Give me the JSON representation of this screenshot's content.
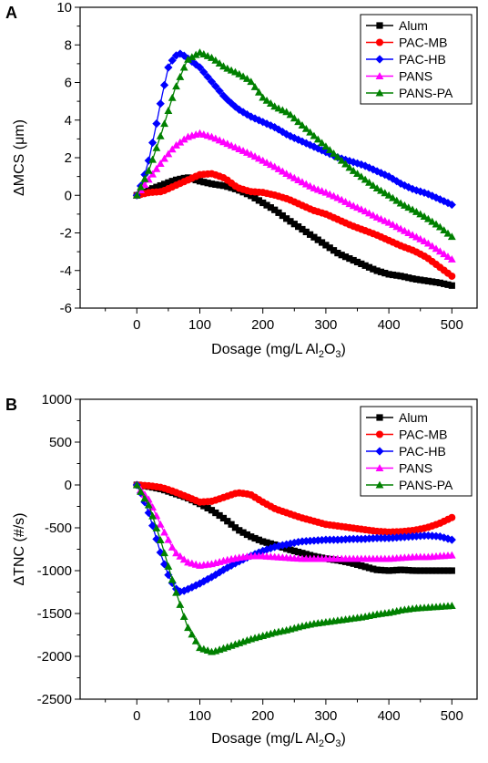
{
  "chart_data": [
    {
      "type": "line",
      "panel_label": "A",
      "xlabel": "Dosage (mg/L Al",
      "xlabel_sub": "2",
      "xlabel_mid": "O",
      "xlabel_sub2": "3",
      "xlabel_end": ")",
      "ylabel": "ΔMCS (μm)",
      "xlim": [
        -90,
        540
      ],
      "ylim": [
        -6,
        10
      ],
      "xticks": [
        0,
        100,
        200,
        300,
        400,
        500
      ],
      "yticks": [
        -6,
        -4,
        -2,
        0,
        2,
        4,
        6,
        8,
        10
      ],
      "legend_position": "top-right",
      "series": [
        {
          "name": "Alum",
          "color": "#000000",
          "marker": "square",
          "x": [
            0,
            20,
            40,
            60,
            80,
            100,
            120,
            140,
            160,
            180,
            200,
            220,
            240,
            260,
            280,
            300,
            320,
            340,
            360,
            380,
            400,
            420,
            440,
            460,
            480,
            500
          ],
          "y": [
            0,
            0.3,
            0.55,
            0.8,
            0.95,
            0.75,
            0.6,
            0.5,
            0.3,
            0,
            -0.4,
            -0.8,
            -1.3,
            -1.75,
            -2.2,
            -2.65,
            -3.1,
            -3.4,
            -3.7,
            -4.0,
            -4.2,
            -4.3,
            -4.45,
            -4.55,
            -4.65,
            -4.8
          ]
        },
        {
          "name": "PAC-MB",
          "color": "#ff0000",
          "marker": "circle",
          "x": [
            0,
            20,
            40,
            60,
            80,
            100,
            120,
            140,
            160,
            180,
            200,
            220,
            240,
            260,
            280,
            300,
            320,
            340,
            360,
            380,
            400,
            420,
            440,
            460,
            480,
            500
          ],
          "y": [
            0,
            0.15,
            0.2,
            0.5,
            0.8,
            1.1,
            1.15,
            0.9,
            0.4,
            0.2,
            0.15,
            0,
            -0.2,
            -0.5,
            -0.8,
            -1.0,
            -1.3,
            -1.6,
            -1.85,
            -2.1,
            -2.4,
            -2.7,
            -2.95,
            -3.3,
            -3.8,
            -4.3
          ]
        },
        {
          "name": "PAC-HB",
          "color": "#0000ff",
          "marker": "diamond",
          "x": [
            0,
            10,
            20,
            30,
            40,
            50,
            60,
            70,
            80,
            100,
            120,
            140,
            160,
            180,
            200,
            220,
            240,
            260,
            280,
            300,
            320,
            340,
            360,
            380,
            400,
            420,
            440,
            460,
            480,
            500
          ],
          "y": [
            0,
            0.8,
            2.0,
            3.6,
            5.3,
            6.8,
            7.4,
            7.55,
            7.3,
            6.8,
            6.0,
            5.2,
            4.6,
            4.2,
            3.9,
            3.6,
            3.2,
            2.9,
            2.6,
            2.3,
            2.0,
            1.8,
            1.6,
            1.3,
            1.0,
            0.6,
            0.3,
            0.1,
            -0.2,
            -0.5
          ]
        },
        {
          "name": "PANS",
          "color": "#ff00ff",
          "marker": "triangle",
          "x": [
            0,
            20,
            40,
            60,
            80,
            100,
            120,
            140,
            160,
            180,
            200,
            220,
            240,
            260,
            280,
            300,
            320,
            340,
            360,
            380,
            400,
            420,
            440,
            460,
            480,
            500
          ],
          "y": [
            0,
            0.9,
            1.8,
            2.6,
            3.1,
            3.3,
            3.1,
            2.8,
            2.5,
            2.2,
            1.85,
            1.5,
            1.1,
            0.75,
            0.4,
            0.15,
            -0.15,
            -0.5,
            -0.8,
            -1.15,
            -1.45,
            -1.8,
            -2.15,
            -2.5,
            -2.95,
            -3.4
          ]
        },
        {
          "name": "PANS-PA",
          "color": "#008000",
          "marker": "triangle",
          "x": [
            0,
            20,
            40,
            60,
            80,
            100,
            120,
            140,
            160,
            180,
            200,
            220,
            240,
            260,
            280,
            300,
            320,
            340,
            360,
            380,
            400,
            420,
            440,
            460,
            480,
            500
          ],
          "y": [
            0,
            1.4,
            3.4,
            5.6,
            7.2,
            7.6,
            7.3,
            6.8,
            6.5,
            6.1,
            5.2,
            4.7,
            4.4,
            3.8,
            3.2,
            2.6,
            2.0,
            1.4,
            0.9,
            0.4,
            0,
            -0.45,
            -0.8,
            -1.2,
            -1.65,
            -2.2
          ]
        }
      ]
    },
    {
      "type": "line",
      "panel_label": "B",
      "xlabel": "Dosage (mg/L Al",
      "xlabel_sub": "2",
      "xlabel_mid": "O",
      "xlabel_sub2": "3",
      "xlabel_end": ")",
      "ylabel": "ΔTNC (#/s)",
      "xlim": [
        -90,
        540
      ],
      "ylim": [
        -2500,
        1000
      ],
      "xticks": [
        0,
        100,
        200,
        300,
        400,
        500
      ],
      "yticks": [
        -2500,
        -2000,
        -1500,
        -1000,
        -500,
        0,
        500,
        1000
      ],
      "legend_position": "top-right",
      "series": [
        {
          "name": "Alum",
          "color": "#000000",
          "marker": "square",
          "x": [
            0,
            20,
            40,
            60,
            80,
            100,
            120,
            140,
            160,
            180,
            200,
            220,
            240,
            260,
            280,
            300,
            320,
            340,
            360,
            380,
            400,
            420,
            440,
            460,
            480,
            500
          ],
          "y": [
            0,
            -20,
            -50,
            -100,
            -150,
            -220,
            -300,
            -400,
            -520,
            -600,
            -660,
            -700,
            -750,
            -790,
            -830,
            -860,
            -880,
            -910,
            -950,
            -990,
            -1000,
            -990,
            -1000,
            -1000,
            -1000,
            -1000
          ]
        },
        {
          "name": "PAC-MB",
          "color": "#ff0000",
          "marker": "circle",
          "x": [
            0,
            20,
            40,
            60,
            80,
            100,
            120,
            140,
            160,
            180,
            200,
            220,
            240,
            260,
            280,
            300,
            320,
            340,
            360,
            380,
            400,
            420,
            440,
            460,
            480,
            500
          ],
          "y": [
            0,
            -10,
            -30,
            -80,
            -140,
            -200,
            -190,
            -140,
            -90,
            -110,
            -200,
            -280,
            -330,
            -380,
            -420,
            -460,
            -480,
            -500,
            -520,
            -540,
            -550,
            -545,
            -530,
            -500,
            -450,
            -380
          ]
        },
        {
          "name": "PAC-HB",
          "color": "#0000ff",
          "marker": "diamond",
          "x": [
            0,
            10,
            20,
            30,
            40,
            50,
            60,
            70,
            80,
            100,
            120,
            140,
            160,
            180,
            200,
            220,
            240,
            260,
            280,
            300,
            320,
            340,
            360,
            380,
            400,
            420,
            440,
            460,
            480,
            500
          ],
          "y": [
            0,
            -150,
            -350,
            -600,
            -850,
            -1050,
            -1200,
            -1250,
            -1220,
            -1150,
            -1070,
            -980,
            -900,
            -830,
            -770,
            -720,
            -690,
            -660,
            -650,
            -640,
            -640,
            -630,
            -630,
            -620,
            -620,
            -610,
            -600,
            -590,
            -600,
            -640
          ]
        },
        {
          "name": "PANS",
          "color": "#ff00ff",
          "marker": "triangle",
          "x": [
            0,
            20,
            40,
            60,
            80,
            100,
            120,
            140,
            160,
            180,
            200,
            220,
            240,
            260,
            280,
            300,
            320,
            340,
            360,
            380,
            400,
            420,
            440,
            460,
            480,
            500
          ],
          "y": [
            0,
            -180,
            -500,
            -780,
            -900,
            -940,
            -920,
            -880,
            -850,
            -830,
            -830,
            -840,
            -850,
            -860,
            -860,
            -860,
            -860,
            -860,
            -860,
            -860,
            -860,
            -850,
            -840,
            -840,
            -830,
            -820
          ]
        },
        {
          "name": "PANS-PA",
          "color": "#008000",
          "marker": "triangle",
          "x": [
            0,
            20,
            40,
            60,
            80,
            100,
            120,
            140,
            160,
            180,
            200,
            220,
            240,
            260,
            280,
            300,
            320,
            340,
            360,
            380,
            400,
            420,
            440,
            460,
            480,
            500
          ],
          "y": [
            0,
            -250,
            -700,
            -1200,
            -1650,
            -1900,
            -1950,
            -1900,
            -1850,
            -1800,
            -1760,
            -1720,
            -1690,
            -1650,
            -1620,
            -1600,
            -1580,
            -1560,
            -1540,
            -1510,
            -1490,
            -1460,
            -1440,
            -1430,
            -1420,
            -1410
          ]
        }
      ]
    }
  ]
}
